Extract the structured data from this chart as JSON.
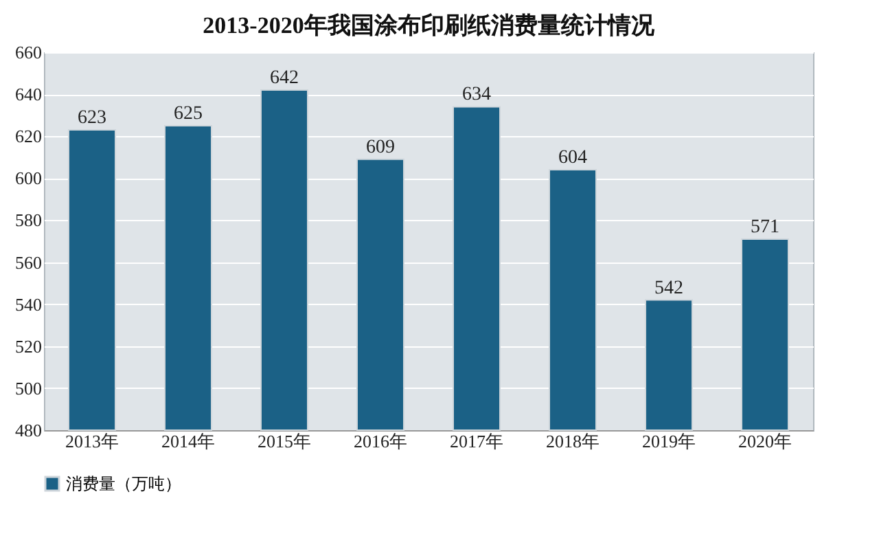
{
  "chart_data": {
    "type": "bar",
    "title": "2013-2020年我国涂布印刷纸消费量统计情况",
    "categories": [
      "2013年",
      "2014年",
      "2015年",
      "2016年",
      "2017年",
      "2018年",
      "2019年",
      "2020年"
    ],
    "series": [
      {
        "name": "消费量（万吨）",
        "color": "#1b6186",
        "values": [
          623,
          625,
          642,
          609,
          634,
          604,
          542,
          571
        ]
      }
    ],
    "ylim": [
      480,
      660
    ],
    "yticks": [
      480,
      500,
      520,
      540,
      560,
      580,
      600,
      620,
      640,
      660
    ],
    "grid": "y",
    "legend": "bottom",
    "data_labels": true
  }
}
